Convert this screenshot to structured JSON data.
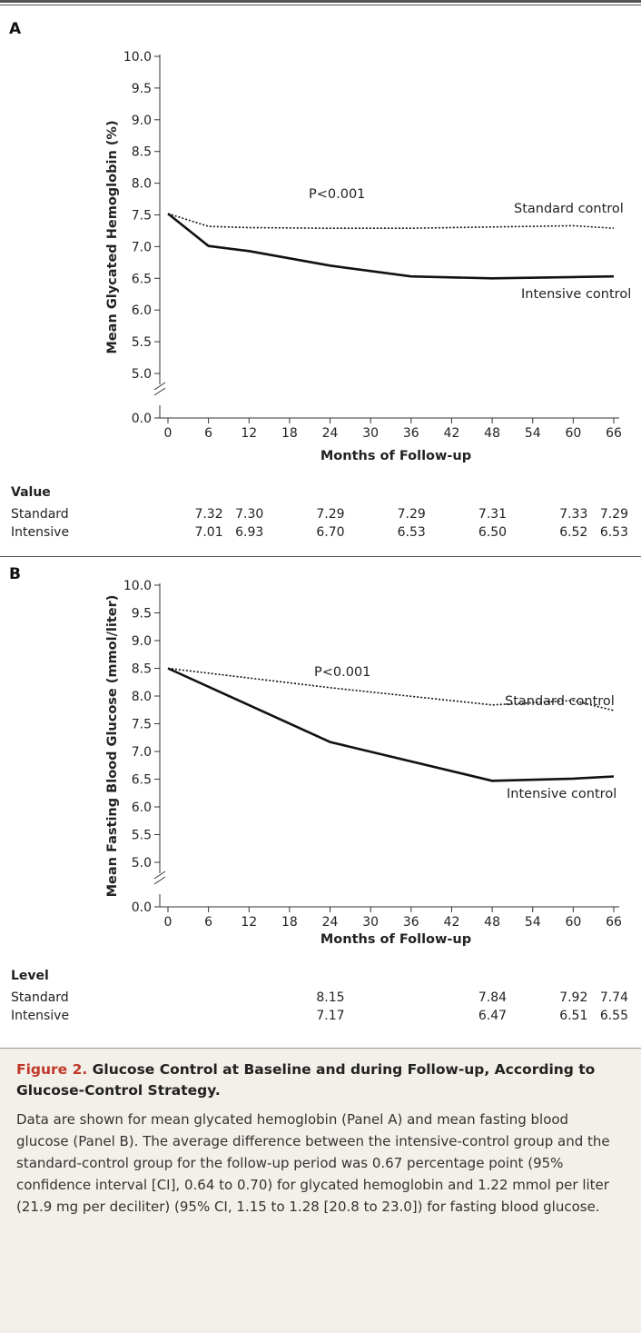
{
  "panels": [
    {
      "letter": "A",
      "table": {
        "title": "Value",
        "rows": [
          {
            "label": "Standard",
            "x": [
              6,
              12,
              24,
              36,
              48,
              60,
              66
            ],
            "values": [
              "7.32",
              "7.30",
              "7.29",
              "7.29",
              "7.31",
              "7.33",
              "7.29"
            ]
          },
          {
            "label": "Intensive",
            "x": [
              6,
              12,
              24,
              36,
              48,
              60,
              66
            ],
            "values": [
              "7.01",
              "6.93",
              "6.70",
              "6.53",
              "6.50",
              "6.52",
              "6.53"
            ]
          }
        ]
      }
    },
    {
      "letter": "B",
      "table": {
        "title": "Level",
        "rows": [
          {
            "label": "Standard",
            "x": [
              24,
              48,
              60,
              66
            ],
            "values": [
              "8.15",
              "7.84",
              "7.92",
              "7.74"
            ]
          },
          {
            "label": "Intensive",
            "x": [
              24,
              48,
              60,
              66
            ],
            "values": [
              "7.17",
              "6.47",
              "6.51",
              "6.55"
            ]
          }
        ]
      }
    }
  ],
  "chart_data": [
    {
      "type": "line",
      "panel": "A",
      "xlabel": "Months of Follow-up",
      "ylabel": "Mean Glycated Hemoglobin (%)",
      "xticks": [
        0,
        6,
        12,
        18,
        24,
        30,
        36,
        42,
        48,
        54,
        60,
        66
      ],
      "yticks": [
        "0.0",
        "5.0",
        "5.5",
        "6.0",
        "6.5",
        "7.0",
        "7.5",
        "8.0",
        "8.5",
        "9.0",
        "9.5",
        "10.0"
      ],
      "y_axis_break": true,
      "ylim": [
        0,
        10
      ],
      "annotation": "P<0.001",
      "series": [
        {
          "name": "Standard control",
          "style": "dotted",
          "x": [
            0,
            6,
            12,
            24,
            36,
            48,
            60,
            66
          ],
          "y": [
            7.52,
            7.32,
            7.3,
            7.29,
            7.29,
            7.31,
            7.33,
            7.29
          ]
        },
        {
          "name": "Intensive control",
          "style": "solid",
          "x": [
            0,
            6,
            12,
            24,
            36,
            48,
            60,
            66
          ],
          "y": [
            7.52,
            7.01,
            6.93,
            6.7,
            6.53,
            6.5,
            6.52,
            6.53
          ]
        }
      ]
    },
    {
      "type": "line",
      "panel": "B",
      "xlabel": "Months of Follow-up",
      "ylabel": "Mean Fasting Blood Glucose (mmol/liter)",
      "xticks": [
        0,
        6,
        12,
        18,
        24,
        30,
        36,
        42,
        48,
        54,
        60,
        66
      ],
      "yticks": [
        "0.0",
        "5.0",
        "5.5",
        "6.0",
        "6.5",
        "7.0",
        "7.5",
        "8.0",
        "8.5",
        "9.0",
        "9.5",
        "10.0"
      ],
      "y_axis_break": true,
      "ylim": [
        0,
        10
      ],
      "annotation": "P<0.001",
      "series": [
        {
          "name": "Standard control",
          "style": "dotted",
          "x": [
            0,
            24,
            48,
            60,
            66
          ],
          "y": [
            8.5,
            8.15,
            7.84,
            7.92,
            7.74
          ]
        },
        {
          "name": "Intensive control",
          "style": "solid",
          "x": [
            0,
            24,
            48,
            60,
            66
          ],
          "y": [
            8.5,
            7.17,
            6.47,
            6.51,
            6.55
          ]
        }
      ]
    }
  ],
  "caption": {
    "figure_label": "Figure 2.",
    "title": "Glucose Control at Baseline and during Follow-up, According to Glucose-Control Strategy.",
    "body": "Data are shown for mean glycated hemoglobin (Panel A) and mean fasting blood glucose (Panel B). The average difference between the intensive-control group and the standard-control group for the follow-up period was 0.67 percentage point (95% confidence interval [CI], 0.64 to 0.70) for glycated hemoglobin and 1.22 mmol per liter (21.9 mg per deciliter) (95% CI, 1.15 to 1.28 [20.8 to 23.0]) for fasting blood glucose."
  },
  "colors": {
    "caption_bg": "#f3f0e9",
    "figure_label": "#c0392b",
    "line": "#111111"
  }
}
